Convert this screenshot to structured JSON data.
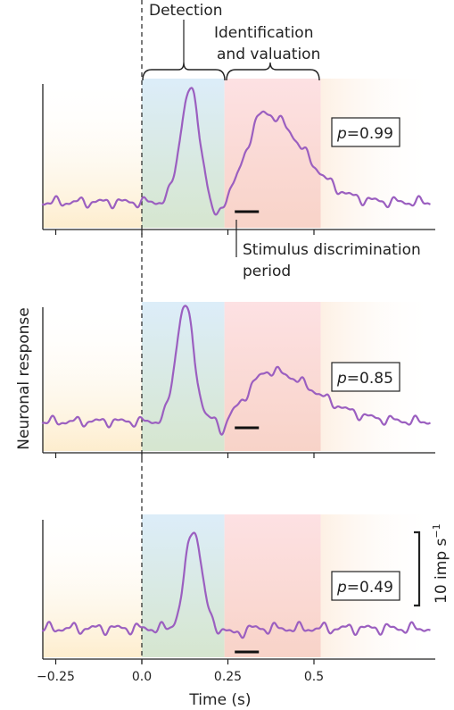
{
  "chart_data": {
    "type": "line",
    "xlabel": "Time (s)",
    "ylabel": "Neuronal response",
    "xlim": [
      -0.3,
      0.85
    ],
    "x_ticks": [
      "−0.25",
      "0.0",
      "0.25",
      "0.5"
    ],
    "x_tick_values": [
      -0.25,
      0.0,
      0.25,
      0.5
    ],
    "stimulus_onset": 0.0,
    "periods": [
      {
        "name": "Detection",
        "start": 0.0,
        "end": 0.24
      },
      {
        "name": "Identification and valuation",
        "start": 0.24,
        "end": 0.52
      }
    ],
    "labels": {
      "detection": "Detection",
      "identification_line1": "Identification",
      "identification_line2": "and valuation",
      "discrimination_line1": "Stimulus discrimination",
      "discrimination_line2": "period"
    },
    "discrimination_bar": [
      0.27,
      0.34
    ],
    "scale_bar_label": "10 imp s",
    "scale_bar_exp": "−1",
    "scale_bar_value": 10,
    "y_range": [
      0,
      65
    ],
    "panels": [
      {
        "p_label": "p",
        "p_text": "=0.99",
        "p": 0.99,
        "baseline": 4,
        "noise_amp": 1.6,
        "phase": 0.3,
        "peaks": [
          {
            "t": 0.14,
            "amp": 58,
            "w": 0.028
          },
          {
            "t": 0.355,
            "amp": 46,
            "w": 0.05
          }
        ],
        "dips": [
          {
            "t": 0.215,
            "amp": -10,
            "w": 0.015
          }
        ]
      },
      {
        "p_label": "p",
        "p_text": "=0.85",
        "p": 0.85,
        "baseline": 6,
        "noise_amp": 1.5,
        "phase": 1.2,
        "peaks": [
          {
            "t": 0.125,
            "amp": 60,
            "w": 0.026
          },
          {
            "t": 0.37,
            "amp": 26,
            "w": 0.06
          }
        ],
        "dips": [
          {
            "t": 0.235,
            "amp": -6,
            "w": 0.012
          }
        ]
      },
      {
        "p_label": "p",
        "p_text": "=0.49",
        "p": 0.49,
        "baseline": 6,
        "noise_amp": 1.8,
        "phase": 2.1,
        "peaks": [
          {
            "t": 0.15,
            "amp": 54,
            "w": 0.024
          }
        ],
        "dips": [
          {
            "t": 0.27,
            "amp": -3,
            "w": 0.02
          }
        ]
      }
    ]
  },
  "colors": {
    "trace": "#9b5fc0",
    "detection": "#dbeef8",
    "detection_low": "#d8e8d4",
    "identification": "#fde0e0",
    "identification_low": "#f7d6cf",
    "pre": "#fdf0d8",
    "axis": "#222222"
  }
}
